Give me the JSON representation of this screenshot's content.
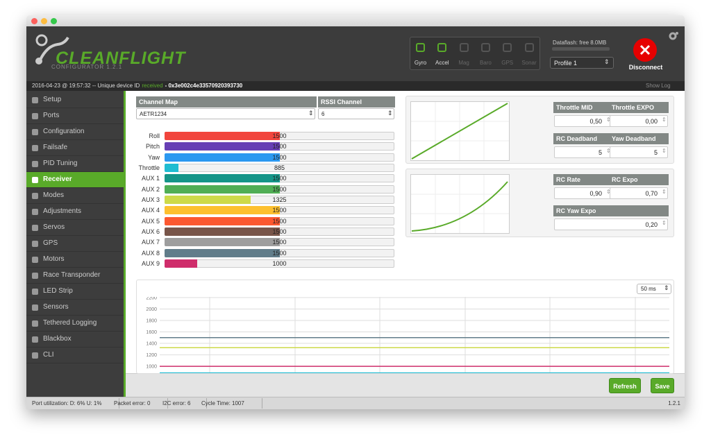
{
  "header": {
    "logo": "CLEANFLIGHT",
    "version": "CONFIGURATOR 1.2.1",
    "sensors": [
      {
        "name": "Gyro",
        "active": true
      },
      {
        "name": "Accel",
        "active": true
      },
      {
        "name": "Mag",
        "active": false
      },
      {
        "name": "Baro",
        "active": false
      },
      {
        "name": "GPS",
        "active": false
      },
      {
        "name": "Sonar",
        "active": false
      }
    ],
    "dataflash": "Dataflash: free 8.0MB",
    "profile": "Profile 1",
    "disconnect": "Disconnect"
  },
  "log_bar": {
    "timestamp": "2016-04-23 @ 19:57:32 -- Unique device ID",
    "status": "received",
    "device_id": "- 0x3e002c4e33570920393730",
    "show_log": "Show Log"
  },
  "nav": {
    "items": [
      "Setup",
      "Ports",
      "Configuration",
      "Failsafe",
      "PID Tuning",
      "Receiver",
      "Modes",
      "Adjustments",
      "Servos",
      "GPS",
      "Motors",
      "Race Transponder",
      "LED Strip",
      "Sensors",
      "Tethered Logging",
      "Blackbox",
      "CLI"
    ],
    "active": "Receiver"
  },
  "receiver": {
    "channel_map_label": "Channel Map",
    "channel_map": "AETR1234",
    "rssi_label": "RSSI Channel",
    "rssi_channel": "6",
    "bar_lim": [
      800,
      2200
    ],
    "channels": [
      {
        "name": "Roll",
        "value": 1500,
        "color": "#f1453d"
      },
      {
        "name": "Pitch",
        "value": 1500,
        "color": "#673fb4"
      },
      {
        "name": "Yaw",
        "value": 1500,
        "color": "#2b98f0"
      },
      {
        "name": "Throttle",
        "value": 885,
        "color": "#1fbcd2"
      },
      {
        "name": "AUX 1",
        "value": 1500,
        "color": "#159588"
      },
      {
        "name": "AUX 2",
        "value": 1500,
        "color": "#50ae55"
      },
      {
        "name": "AUX 3",
        "value": 1325,
        "color": "#cdda49"
      },
      {
        "name": "AUX 4",
        "value": 1500,
        "color": "#fdc02f"
      },
      {
        "name": "AUX 5",
        "value": 1500,
        "color": "#fc5830"
      },
      {
        "name": "AUX 6",
        "value": 1500,
        "color": "#785549"
      },
      {
        "name": "AUX 7",
        "value": 1500,
        "color": "#9e9e9e"
      },
      {
        "name": "AUX 8",
        "value": 1500,
        "color": "#617d8a"
      },
      {
        "name": "AUX 9",
        "value": 1000,
        "color": "#cf2d6b"
      }
    ]
  },
  "tuning": {
    "panels": [
      {
        "fields": [
          {
            "label": "Throttle MID",
            "value": "0,50"
          },
          {
            "label": "Throttle EXPO",
            "value": "0,00"
          },
          {
            "label": "RC Deadband",
            "value": "5"
          },
          {
            "label": "Yaw Deadband",
            "value": "5"
          }
        ]
      },
      {
        "fields": [
          {
            "label": "RC Rate",
            "value": "0,90"
          },
          {
            "label": "RC Expo",
            "value": "0,70"
          },
          {
            "label": "RC Yaw Expo",
            "value": "0,20"
          }
        ]
      }
    ]
  },
  "graph": {
    "refresh_rate": "50 ms",
    "ylim": [
      880,
      2200
    ],
    "yticks": [
      1000,
      1200,
      1400,
      1600,
      1800,
      2000,
      2200
    ]
  },
  "buttons": [
    "Refresh",
    "Save"
  ],
  "footer": {
    "items": [
      "Port utilization: D: 6% U: 1%",
      "Packet error: 0",
      "I2C error: 6",
      "Cycle Time: 1007"
    ],
    "version": "1.2.1"
  }
}
